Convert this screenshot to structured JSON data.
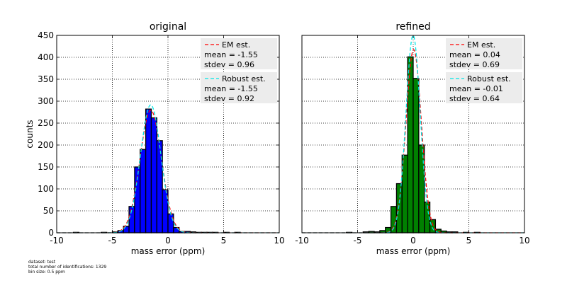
{
  "chart_data": [
    {
      "type": "bar",
      "title": "original",
      "xlabel": "mass error (ppm)",
      "ylabel": "counts",
      "xlim": [
        -10,
        10
      ],
      "ylim": [
        0,
        450
      ],
      "xticks": [
        -10,
        -5,
        0,
        5,
        10
      ],
      "yticks": [
        0,
        50,
        100,
        150,
        200,
        250,
        300,
        350,
        400,
        450
      ],
      "grid": true,
      "bar_color": "#0000ff",
      "bin_size": 0.5,
      "bins_left": [
        -8.5,
        -6,
        -5,
        -4.5,
        -4,
        -3.5,
        -3,
        -2.5,
        -2,
        -1.5,
        -1,
        -0.5,
        0,
        0.5,
        1,
        1.5,
        2,
        2.5,
        3,
        3.5,
        4,
        5,
        6
      ],
      "values": [
        1,
        1,
        2,
        5,
        15,
        60,
        150,
        190,
        282,
        262,
        210,
        98,
        43,
        12,
        3,
        3,
        2,
        1,
        1,
        1,
        1,
        1,
        1
      ],
      "legend": [
        {
          "label": "EM est.",
          "line_color": "#ff0000",
          "mean_text": "mean = -1.55",
          "stdev_text": "stdev = 0.96",
          "mean": -1.55,
          "stdev": 0.96
        },
        {
          "label": "Robust est.",
          "line_color": "#00e5e5",
          "mean_text": "mean = -1.55",
          "stdev_text": "stdev = 0.92",
          "mean": -1.55,
          "stdev": 0.92
        }
      ],
      "legend_position": "top-right"
    },
    {
      "type": "bar",
      "title": "refined",
      "xlabel": "mass error (ppm)",
      "ylabel": "",
      "xlim": [
        -10,
        10
      ],
      "ylim": [
        0,
        450
      ],
      "xticks": [
        -10,
        -5,
        0,
        5,
        10
      ],
      "yticks": [],
      "grid": true,
      "bar_color": "#008000",
      "bin_size": 0.5,
      "bins_left": [
        -6,
        -4.5,
        -4,
        -3.5,
        -3,
        -2.5,
        -2,
        -1.5,
        -1,
        -0.5,
        0,
        0.5,
        1,
        1.5,
        2,
        2.5,
        3,
        3.5,
        4.5,
        5.5
      ],
      "values": [
        1,
        2,
        3,
        2,
        5,
        12,
        60,
        112,
        177,
        401,
        352,
        200,
        70,
        30,
        8,
        4,
        2,
        2,
        1,
        1
      ],
      "legend": [
        {
          "label": "EM est.",
          "line_color": "#ff0000",
          "mean_text": "mean = 0.04",
          "stdev_text": "stdev = 0.69",
          "mean": 0.04,
          "stdev": 0.69
        },
        {
          "label": "Robust est.",
          "line_color": "#00e5e5",
          "mean_text": "mean = -0.01",
          "stdev_text": "stdev = 0.64",
          "mean": -0.01,
          "stdev": 0.64
        }
      ],
      "legend_position": "top-right"
    }
  ],
  "footnote": {
    "dataset": "dataset: test",
    "identifications": "total number of identifications: 1329",
    "bin_size": "bin size: 0.5 ppm"
  }
}
